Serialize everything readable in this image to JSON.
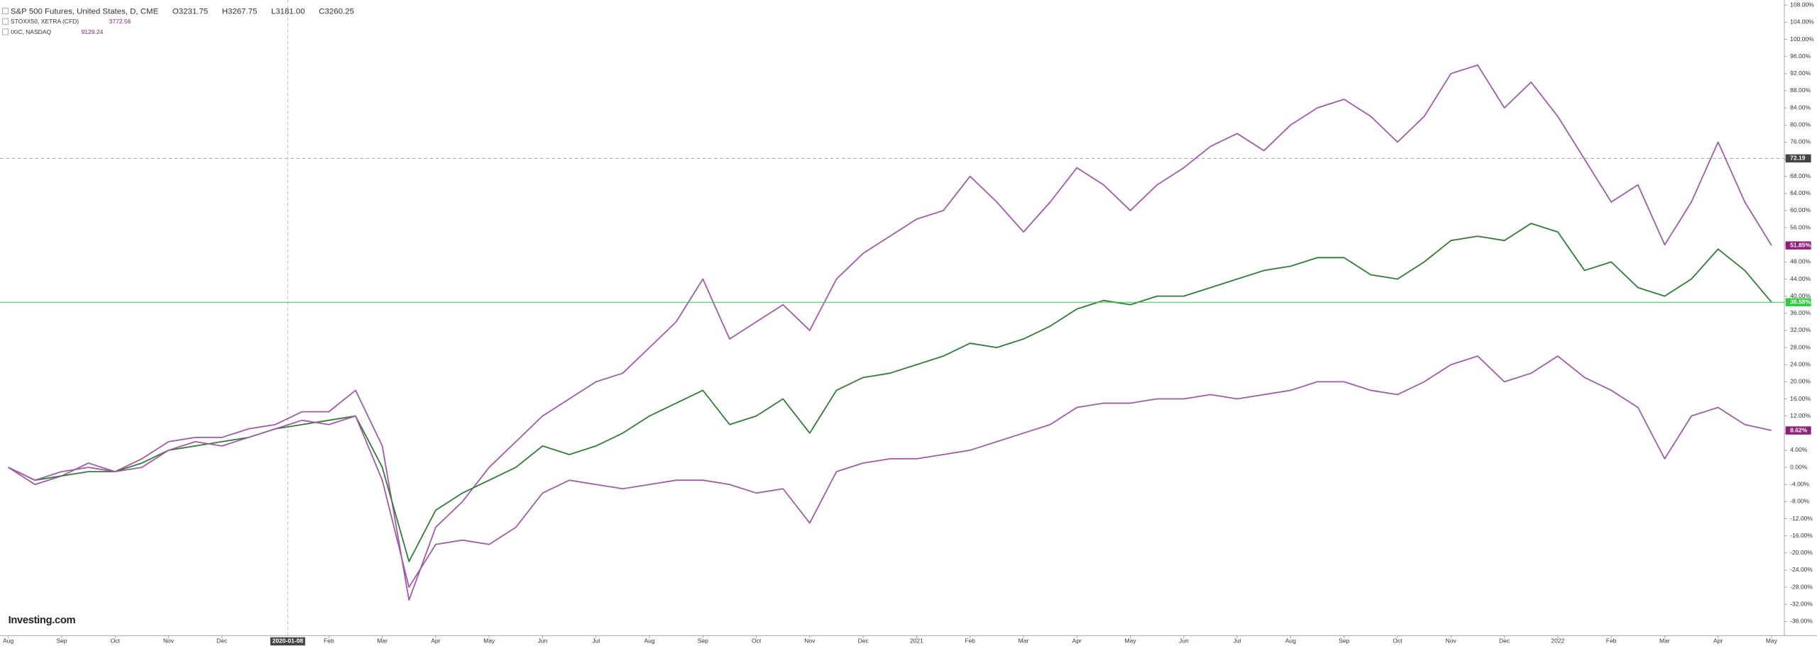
{
  "chart_data": {
    "type": "line",
    "legend": [
      {
        "name": "S&P 500 Futures, United States, D, CME",
        "open": "O3231.75",
        "high": "H3267.75",
        "low": "L3181.00",
        "close": "C3260.25"
      },
      {
        "name": "STOXX50, XETRA (CFD)",
        "price": "3772.56"
      },
      {
        "name": "IXIC, NASDAQ",
        "price": "9129.24"
      }
    ],
    "logo": "Investing.com",
    "x": [
      0,
      0.5,
      1,
      1.5,
      2,
      2.5,
      3,
      3.5,
      4,
      4.5,
      5,
      5.5,
      6,
      6.5,
      7,
      7.5,
      8,
      8.5,
      9,
      9.5,
      10,
      10.5,
      11,
      11.5,
      12,
      12.5,
      13,
      13.5,
      14,
      14.5,
      15,
      15.5,
      16,
      16.5,
      17,
      17.5,
      18,
      18.5,
      19,
      19.5,
      20,
      20.5,
      21,
      21.5,
      22,
      22.5,
      23,
      23.5,
      24,
      24.5,
      25,
      25.5,
      26,
      26.5,
      27,
      27.5,
      28,
      28.5,
      29,
      29.5,
      30,
      30.5,
      31,
      31.5,
      32,
      32.5,
      33
    ],
    "series": [
      {
        "name": "IXIC, NASDAQ",
        "color": "#a05aa8",
        "values": [
          0,
          -4,
          -2,
          1,
          -1,
          2,
          6,
          7,
          7,
          9,
          10,
          13,
          13,
          18,
          5,
          -31,
          -14,
          -8,
          0,
          6,
          12,
          16,
          20,
          22,
          28,
          34,
          44,
          30,
          34,
          38,
          32,
          44,
          50,
          54,
          58,
          60,
          68,
          62,
          55,
          62,
          70,
          66,
          60,
          66,
          70,
          75,
          78,
          74,
          80,
          84,
          86,
          82,
          76,
          82,
          92,
          94,
          84,
          90,
          82,
          72,
          62,
          66,
          52,
          62,
          76,
          62,
          51.85
        ]
      },
      {
        "name": "S&P 500 Futures, United States, D, CME",
        "color": "#2f7d34",
        "values": [
          0,
          -3,
          -2,
          -1,
          -1,
          1,
          4,
          5,
          6,
          7,
          9,
          10,
          11,
          12,
          0,
          -22,
          -10,
          -6,
          -3,
          0,
          5,
          3,
          5,
          8,
          12,
          15,
          18,
          10,
          12,
          16,
          8,
          18,
          21,
          22,
          24,
          26,
          29,
          28,
          30,
          33,
          37,
          39,
          38,
          40,
          40,
          42,
          44,
          46,
          47,
          49,
          49,
          45,
          44,
          48,
          53,
          54,
          53,
          57,
          55,
          46,
          48,
          42,
          40,
          44,
          51,
          46,
          38.58
        ]
      },
      {
        "name": "STOXX50, XETRA (CFD)",
        "color": "#a05aa8",
        "values": [
          0,
          -3,
          -1,
          0,
          -1,
          0,
          4,
          6,
          5,
          7,
          9,
          11,
          10,
          12,
          -3,
          -28,
          -18,
          -17,
          -18,
          -14,
          -6,
          -3,
          -4,
          -5,
          -4,
          -3,
          -3,
          -4,
          -6,
          -5,
          -13,
          -1,
          1,
          2,
          2,
          3,
          4,
          6,
          8,
          10,
          14,
          15,
          15,
          16,
          16,
          17,
          16,
          17,
          18,
          20,
          20,
          18,
          17,
          20,
          24,
          26,
          20,
          22,
          26,
          21,
          18,
          14,
          2,
          12,
          14,
          10,
          8.62
        ]
      }
    ],
    "last_labels": [
      {
        "value": 51.85,
        "label": "51.85%",
        "color": "#8e1f7a"
      },
      {
        "value": 38.58,
        "label": "38.58%",
        "color": "#2ecc40"
      },
      {
        "value": 8.62,
        "label": "8.62%",
        "color": "#8e1f7a"
      }
    ],
    "crosshair": {
      "y": {
        "value": 72.19,
        "label": "72.19"
      },
      "x": {
        "value": 5.23,
        "label": "2020-01-08"
      }
    },
    "xlim": [
      -0.152,
      33.24
    ],
    "ylim": [
      -39.3,
      109.2
    ],
    "xticks": [
      {
        "value": 0,
        "label": "Aug"
      },
      {
        "value": 1,
        "label": "Sep"
      },
      {
        "value": 2,
        "label": "Oct"
      },
      {
        "value": 3,
        "label": "Nov"
      },
      {
        "value": 4,
        "label": "Dec"
      },
      {
        "value": 6,
        "label": "Feb"
      },
      {
        "value": 7,
        "label": "Mar"
      },
      {
        "value": 8,
        "label": "Apr"
      },
      {
        "value": 9,
        "label": "May"
      },
      {
        "value": 10,
        "label": "Jun"
      },
      {
        "value": 11,
        "label": "Jul"
      },
      {
        "value": 12,
        "label": "Aug"
      },
      {
        "value": 13,
        "label": "Sep"
      },
      {
        "value": 14,
        "label": "Oct"
      },
      {
        "value": 15,
        "label": "Nov"
      },
      {
        "value": 16,
        "label": "Dec"
      },
      {
        "value": 17,
        "label": "2021"
      },
      {
        "value": 18,
        "label": "Feb"
      },
      {
        "value": 19,
        "label": "Mar"
      },
      {
        "value": 20,
        "label": "Apr"
      },
      {
        "value": 21,
        "label": "May"
      },
      {
        "value": 22,
        "label": "Jun"
      },
      {
        "value": 23,
        "label": "Jul"
      },
      {
        "value": 24,
        "label": "Aug"
      },
      {
        "value": 25,
        "label": "Sep"
      },
      {
        "value": 26,
        "label": "Oct"
      },
      {
        "value": 27,
        "label": "Nov"
      },
      {
        "value": 28,
        "label": "Dec"
      },
      {
        "value": 29,
        "label": "2022"
      },
      {
        "value": 30,
        "label": "Feb"
      },
      {
        "value": 31,
        "label": "Mar"
      },
      {
        "value": 32,
        "label": "Apr"
      },
      {
        "value": 33,
        "label": "May"
      }
    ],
    "yticks": [
      {
        "value": -36,
        "label": "-36.00%"
      },
      {
        "value": -32,
        "label": "-32.00%"
      },
      {
        "value": -28,
        "label": "-28.00%"
      },
      {
        "value": -24,
        "label": "-24.00%"
      },
      {
        "value": -20,
        "label": "-20.00%"
      },
      {
        "value": -16,
        "label": "-16.00%"
      },
      {
        "value": -12,
        "label": "-12.00%"
      },
      {
        "value": -8,
        "label": "-8.00%"
      },
      {
        "value": -4,
        "label": "-4.00%"
      },
      {
        "value": 0,
        "label": "0.00%"
      },
      {
        "value": 4,
        "label": "4.00%"
      },
      {
        "value": 8,
        "label": "8.00%"
      },
      {
        "value": 12,
        "label": "12.00%"
      },
      {
        "value": 16,
        "label": "16.00%"
      },
      {
        "value": 20,
        "label": "20.00%"
      },
      {
        "value": 24,
        "label": "24.00%"
      },
      {
        "value": 28,
        "label": "28.00%"
      },
      {
        "value": 32,
        "label": "32.00%"
      },
      {
        "value": 36,
        "label": "36.00%"
      },
      {
        "value": 40,
        "label": "40.00%"
      },
      {
        "value": 44,
        "label": "44.00%"
      },
      {
        "value": 48,
        "label": "48.00%"
      },
      {
        "value": 52,
        "label": "52.00%"
      },
      {
        "value": 56,
        "label": "56.00%"
      },
      {
        "value": 60,
        "label": "60.00%"
      },
      {
        "value": 64,
        "label": "64.00%"
      },
      {
        "value": 68,
        "label": "68.00%"
      },
      {
        "value": 72,
        "label": "72.00%"
      },
      {
        "value": 76,
        "label": "76.00%"
      },
      {
        "value": 80,
        "label": "80.00%"
      },
      {
        "value": 84,
        "label": "84.00%"
      },
      {
        "value": 88,
        "label": "88.00%"
      },
      {
        "value": 92,
        "label": "92.00%"
      },
      {
        "value": 96,
        "label": "96.00%"
      },
      {
        "value": 100,
        "label": "100.00%"
      },
      {
        "value": 104,
        "label": "104.00%"
      },
      {
        "value": 108,
        "label": "108.00%"
      }
    ]
  }
}
